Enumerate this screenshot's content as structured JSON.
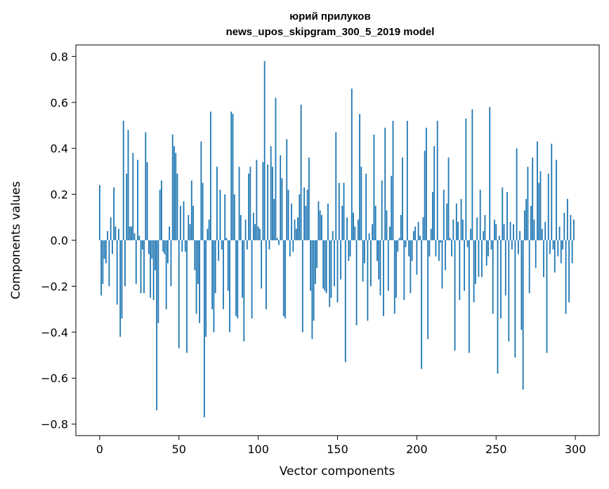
{
  "chart_data": {
    "type": "bar",
    "title": "юрий прилуков",
    "subtitle": "news_upos_skipgram_300_5_2019 model",
    "xlabel": "Vector components",
    "ylabel": "Components values",
    "xlim": [
      -15,
      315
    ],
    "ylim": [
      -0.85,
      0.85
    ],
    "xticks": [
      0,
      50,
      100,
      150,
      200,
      250,
      300
    ],
    "yticks": [
      -0.8,
      -0.6,
      -0.4,
      -0.2,
      0.0,
      0.2,
      0.4,
      0.6,
      0.8
    ],
    "xtick_labels": [
      "0",
      "50",
      "100",
      "150",
      "200",
      "250",
      "300"
    ],
    "ytick_labels": [
      "−0.8",
      "−0.6",
      "−0.4",
      "−0.2",
      "0.0",
      "0.2",
      "0.4",
      "0.6",
      "0.8"
    ],
    "bar_color": "#1f77b4",
    "grid": false,
    "values": [
      0.24,
      -0.24,
      -0.19,
      -0.08,
      -0.1,
      0.04,
      -0.2,
      0.1,
      -0.06,
      0.23,
      0.06,
      -0.28,
      0.05,
      -0.42,
      -0.34,
      0.52,
      -0.2,
      0.29,
      0.48,
      0.06,
      0.06,
      0.38,
      0.03,
      -0.19,
      0.35,
      0.02,
      -0.23,
      -0.04,
      -0.23,
      0.47,
      0.34,
      -0.06,
      -0.25,
      -0.08,
      -0.26,
      -0.13,
      -0.74,
      -0.36,
      0.22,
      0.26,
      -0.05,
      -0.06,
      -0.3,
      -0.1,
      0.06,
      -0.2,
      0.46,
      0.41,
      0.38,
      0.29,
      -0.47,
      0.15,
      -0.05,
      0.17,
      -0.05,
      -0.49,
      0.11,
      0.07,
      0.26,
      0.15,
      -0.13,
      -0.32,
      -0.19,
      -0.36,
      0.43,
      0.25,
      -0.77,
      -0.42,
      0.05,
      0.09,
      0.56,
      -0.3,
      -0.4,
      -0.23,
      0.32,
      -0.09,
      0.22,
      -0.04,
      -0.3,
      0.2,
      0.01,
      -0.22,
      -0.4,
      0.56,
      0.55,
      0.2,
      -0.33,
      -0.34,
      0.32,
      0.11,
      -0.25,
      -0.44,
      0.09,
      -0.04,
      0.29,
      0.32,
      -0.34,
      0.12,
      0.07,
      0.35,
      0.06,
      0.05,
      -0.21,
      0.34,
      0.78,
      -0.3,
      0.33,
      -0.04,
      0.41,
      0.32,
      0.18,
      0.62,
      0.01,
      -0.02,
      0.37,
      0.27,
      -0.33,
      -0.34,
      0.44,
      0.22,
      -0.07,
      0.16,
      -0.05,
      0.09,
      0.05,
      0.1,
      0.2,
      0.59,
      -0.4,
      0.23,
      0.15,
      0.22,
      0.36,
      -0.22,
      -0.43,
      -0.35,
      -0.19,
      -0.12,
      0.17,
      0.13,
      0.11,
      -0.21,
      -0.22,
      -0.23,
      0.16,
      -0.29,
      -0.25,
      0.04,
      -0.2,
      0.47,
      -0.27,
      0.25,
      -0.17,
      0.15,
      0.25,
      -0.53,
      0.1,
      -0.09,
      -0.07,
      0.66,
      0.12,
      0.06,
      -0.37,
      0.09,
      0.55,
      0.32,
      -0.18,
      -0.1,
      0.29,
      -0.35,
      0.03,
      -0.2,
      0.07,
      0.46,
      0.15,
      -0.09,
      -0.17,
      -0.24,
      0.26,
      -0.33,
      0.49,
      0.13,
      -0.22,
      0.06,
      0.28,
      0.52,
      -0.32,
      -0.25,
      -0.05,
      0.01,
      0.11,
      0.36,
      -0.26,
      -0.03,
      0.52,
      -0.07,
      -0.23,
      -0.09,
      0.04,
      0.06,
      -0.15,
      0.08,
      0.02,
      -0.56,
      0.1,
      0.39,
      0.49,
      -0.43,
      -0.07,
      0.05,
      0.21,
      0.41,
      -0.07,
      0.52,
      -0.09,
      -0.01,
      -0.21,
      0.22,
      -0.13,
      0.16,
      0.36,
      0.01,
      -0.07,
      0.09,
      -0.48,
      0.16,
      0.08,
      -0.26,
      0.18,
      0.09,
      -0.22,
      0.53,
      -0.03,
      -0.49,
      0.05,
      0.57,
      -0.27,
      -0.19,
      0.1,
      -0.16,
      0.22,
      -0.16,
      0.04,
      0.11,
      -0.11,
      -0.07,
      0.58,
      -0.04,
      -0.32,
      0.09,
      0.07,
      -0.58,
      0.02,
      -0.34,
      0.23,
      0.07,
      -0.24,
      0.21,
      -0.44,
      0.08,
      -0.04,
      0.07,
      -0.51,
      0.4,
      -0.06,
      0.04,
      -0.39,
      -0.65,
      0.13,
      0.18,
      0.32,
      -0.23,
      0.15,
      0.36,
      0.09,
      -0.12,
      0.43,
      0.25,
      0.3,
      0.05,
      -0.16,
      0.08,
      -0.49,
      0.29,
      -0.06,
      0.42,
      -0.04,
      -0.14,
      0.35,
      -0.07,
      0.06,
      -0.1,
      -0.04,
      0.12,
      -0.32,
      0.18,
      -0.27,
      0.11,
      -0.1,
      0.09
    ]
  }
}
